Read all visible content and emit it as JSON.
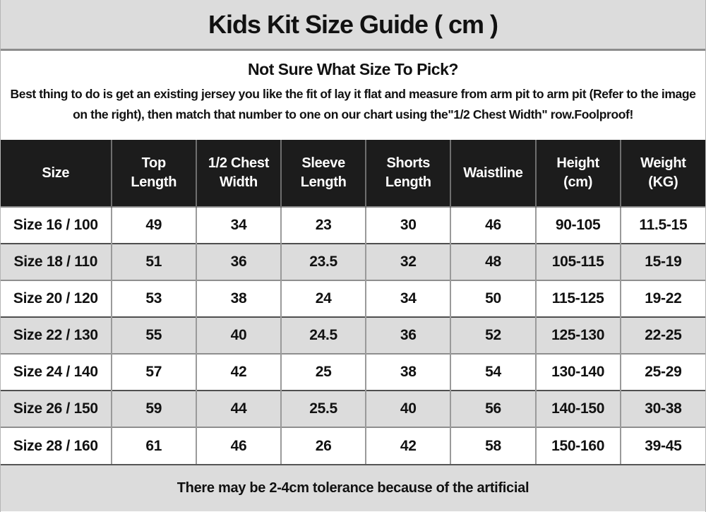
{
  "title": "Kids Kit Size Guide ( cm )",
  "intro": {
    "heading": "Not Sure What Size To Pick?",
    "body": "Best thing to do is get an existing jersey you like the fit of lay it flat and measure from arm pit to arm pit (Refer to the image on the right), then match that number to one on our chart using the\"1/2 Chest Width\" row.Foolproof!"
  },
  "table": {
    "columns": [
      "Size",
      "Top Length",
      "1/2 Chest Width",
      "Sleeve Length",
      "Shorts Length",
      "Waistline",
      "Height (cm)",
      "Weight (KG)"
    ],
    "rows": [
      [
        "Size 16 / 100",
        "49",
        "34",
        "23",
        "30",
        "46",
        "90-105",
        "11.5-15"
      ],
      [
        "Size 18 / 110",
        "51",
        "36",
        "23.5",
        "32",
        "48",
        "105-115",
        "15-19"
      ],
      [
        "Size 20 / 120",
        "53",
        "38",
        "24",
        "34",
        "50",
        "115-125",
        "19-22"
      ],
      [
        "Size 22 / 130",
        "55",
        "40",
        "24.5",
        "36",
        "52",
        "125-130",
        "22-25"
      ],
      [
        "Size 24 / 140",
        "57",
        "42",
        "25",
        "38",
        "54",
        "130-140",
        "25-29"
      ],
      [
        "Size 26 / 150",
        "59",
        "44",
        "25.5",
        "40",
        "56",
        "140-150",
        "30-38"
      ],
      [
        "Size 28 / 160",
        "61",
        "46",
        "26",
        "42",
        "58",
        "150-160",
        "39-45"
      ]
    ]
  },
  "footer": {
    "note": "There may be 2-4cm tolerance because of the artificial"
  },
  "colors": {
    "panel_gray": "#dcdcdc",
    "header_black": "#1c1c1c",
    "header_text": "#ffffff",
    "body_text": "#111111",
    "border_gray": "#9a9a9a",
    "border_dark": "#4f4f4f"
  }
}
